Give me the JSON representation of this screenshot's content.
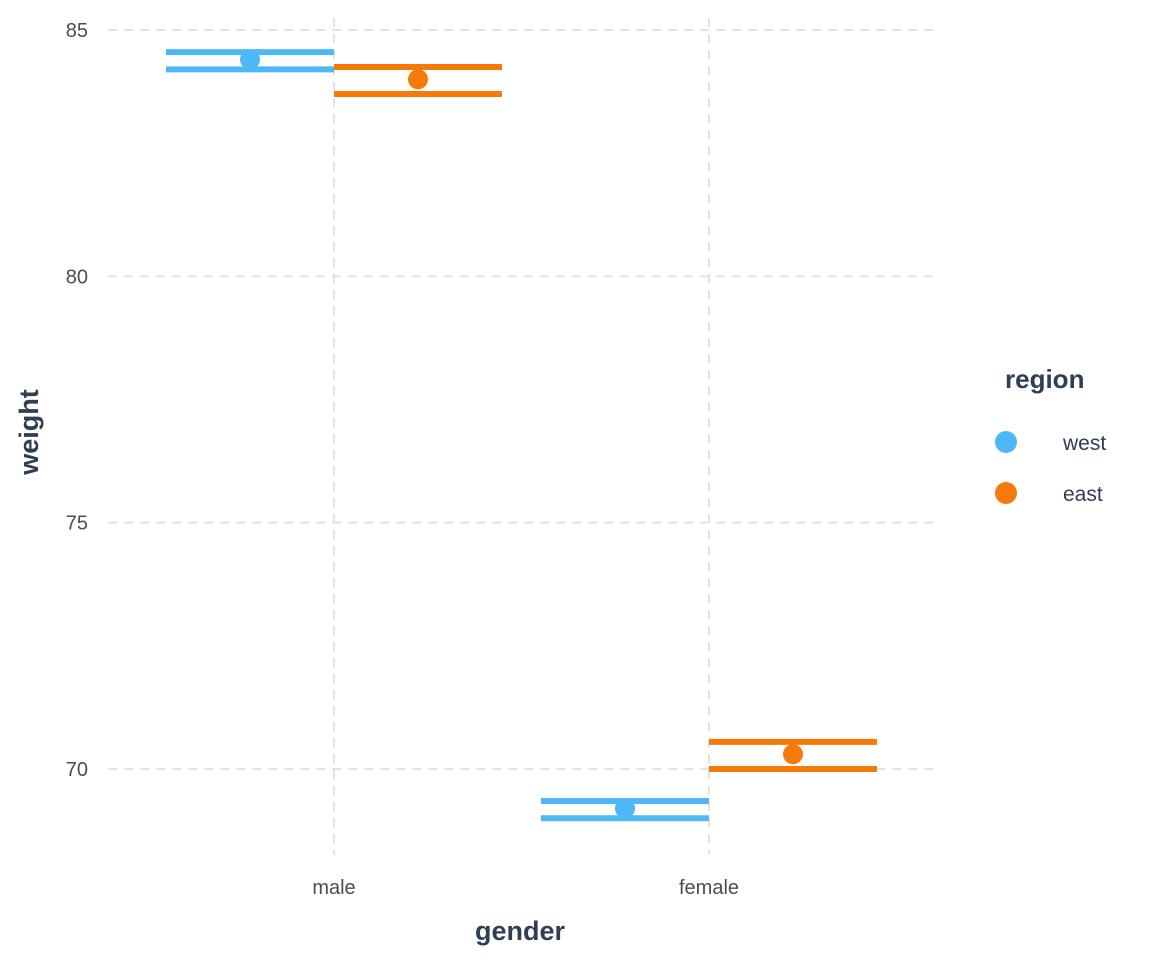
{
  "chart_data": {
    "type": "scatter",
    "title": "",
    "xlabel": "gender",
    "ylabel": "weight",
    "categories": [
      "male",
      "female"
    ],
    "yticks": [
      70,
      75,
      80,
      85
    ],
    "ylim": [
      68.0,
      85.5
    ],
    "grid": true,
    "legend": {
      "title": "region",
      "placement": "right"
    },
    "series": [
      {
        "name": "west",
        "color": "#4db8f5",
        "values": [
          84.4,
          69.2
        ],
        "lower": [
          84.2,
          69.0
        ],
        "upper": [
          84.55,
          69.35
        ]
      },
      {
        "name": "east",
        "color": "#f67a0a",
        "values": [
          84.0,
          70.3
        ],
        "lower": [
          83.7,
          70.0
        ],
        "upper": [
          84.25,
          70.55
        ]
      }
    ]
  }
}
